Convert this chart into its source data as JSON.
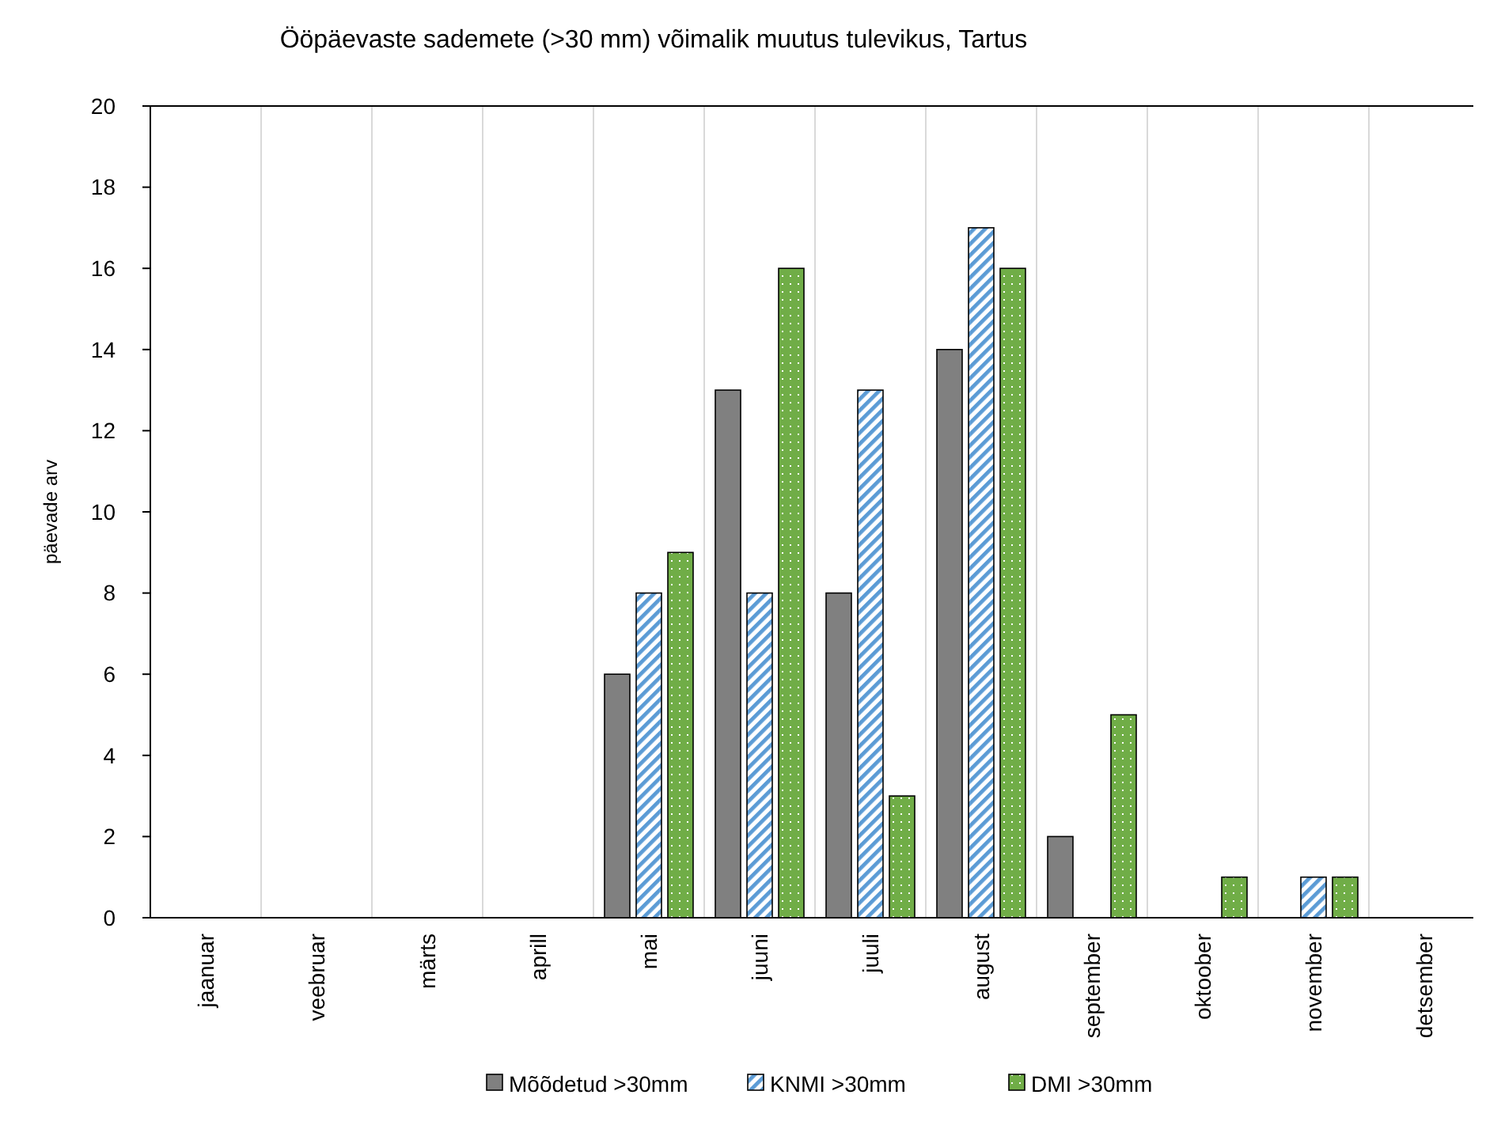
{
  "chart_data": {
    "type": "bar",
    "title": "Ööpäevaste sademete (>30 mm) võimalik muutus tulevikus, Tartus",
    "ylabel": "päevade arv",
    "categories": [
      "jaanuar",
      "veebruar",
      "märts",
      "aprill",
      "mai",
      "juuni",
      "juuli",
      "august",
      "september",
      "oktoober",
      "november",
      "detsember"
    ],
    "series": [
      {
        "name": "Mõõdetud >30mm",
        "color": "#808080",
        "values": [
          0,
          0,
          0,
          0,
          6,
          13,
          8,
          14,
          2,
          0,
          0,
          0
        ]
      },
      {
        "name": "KNMI >30mm",
        "color": "#5b9bd5",
        "values": [
          0,
          0,
          0,
          0,
          8,
          8,
          13,
          17,
          0,
          0,
          1,
          0
        ]
      },
      {
        "name": "DMI >30mm",
        "color": "#70ad47",
        "values": [
          0,
          0,
          0,
          0,
          9,
          16,
          3,
          16,
          5,
          1,
          1,
          0
        ]
      }
    ],
    "ylim": [
      0,
      20
    ],
    "yticks": [
      0,
      2,
      4,
      6,
      8,
      10,
      12,
      14,
      16,
      18,
      20
    ],
    "grid": "x",
    "legend": "bottom"
  }
}
